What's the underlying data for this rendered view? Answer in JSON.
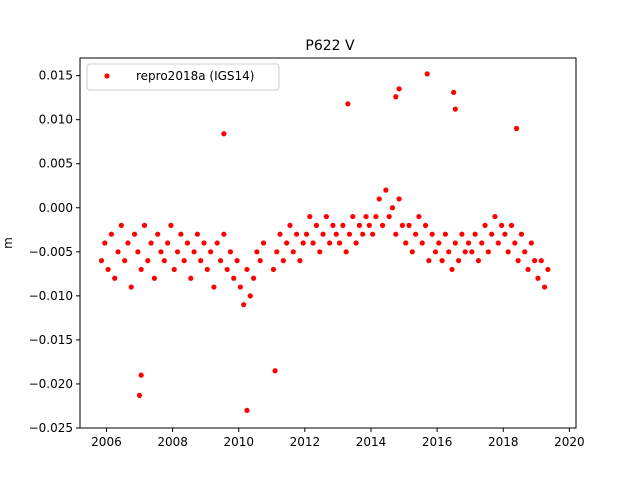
{
  "chart_data": {
    "type": "scatter",
    "title": "P622 V",
    "xlabel": "",
    "ylabel": "m",
    "xlim": [
      2005.2,
      2020.2
    ],
    "ylim": [
      -0.025,
      0.017
    ],
    "xticks": [
      2006,
      2008,
      2010,
      2012,
      2014,
      2016,
      2018,
      2020
    ],
    "xtick_labels": [
      "2006",
      "2008",
      "2010",
      "2012",
      "2014",
      "2016",
      "2018",
      "2020"
    ],
    "yticks": [
      -0.025,
      -0.02,
      -0.015,
      -0.01,
      -0.005,
      0.0,
      0.005,
      0.01,
      0.015
    ],
    "ytick_labels": [
      "−0.025",
      "−0.020",
      "−0.015",
      "−0.010",
      "−0.005",
      "0.000",
      "0.005",
      "0.010",
      "0.015"
    ],
    "grid": false,
    "legend_position": "top-left",
    "series": [
      {
        "name": "repro2018a (IGS14)",
        "color": "#ff0000",
        "marker": "circle",
        "x": [
          2005.85,
          2005.95,
          2006.05,
          2006.15,
          2006.25,
          2006.35,
          2006.45,
          2006.55,
          2006.65,
          2006.75,
          2006.85,
          2006.95,
          2007.05,
          2007.15,
          2007.25,
          2007.35,
          2007.45,
          2007.55,
          2007.65,
          2007.75,
          2007.85,
          2007.95,
          2008.05,
          2008.15,
          2008.25,
          2008.35,
          2008.45,
          2008.55,
          2008.65,
          2008.75,
          2008.85,
          2008.95,
          2009.05,
          2009.15,
          2009.25,
          2009.35,
          2009.45,
          2009.55,
          2009.65,
          2009.75,
          2009.85,
          2009.95,
          2010.05,
          2010.15,
          2010.25,
          2010.35,
          2010.45,
          2010.55,
          2010.65,
          2010.75,
          2011.05,
          2011.15,
          2011.25,
          2011.35,
          2011.45,
          2011.55,
          2011.65,
          2011.75,
          2011.85,
          2011.95,
          2012.05,
          2012.15,
          2012.25,
          2012.35,
          2012.45,
          2012.55,
          2012.65,
          2012.75,
          2012.85,
          2012.95,
          2013.05,
          2013.15,
          2013.25,
          2013.35,
          2013.45,
          2013.55,
          2013.65,
          2013.75,
          2013.85,
          2013.95,
          2014.05,
          2014.15,
          2014.25,
          2014.35,
          2014.45,
          2014.55,
          2014.65,
          2014.75,
          2014.85,
          2014.95,
          2015.05,
          2015.15,
          2015.25,
          2015.35,
          2015.45,
          2015.55,
          2015.65,
          2015.75,
          2015.85,
          2015.95,
          2016.05,
          2016.15,
          2016.25,
          2016.35,
          2016.45,
          2016.55,
          2016.65,
          2016.75,
          2016.85,
          2016.95,
          2017.05,
          2017.15,
          2017.25,
          2017.35,
          2017.45,
          2017.55,
          2017.65,
          2017.75,
          2017.85,
          2017.95,
          2018.05,
          2018.15,
          2018.25,
          2018.35,
          2018.45,
          2018.55,
          2018.65,
          2018.75,
          2018.85,
          2018.95,
          2019.05,
          2019.15,
          2019.25,
          2019.35,
          2007.0,
          2009.55,
          2010.25,
          2013.3,
          2014.75,
          2014.85,
          2015.7,
          2016.5,
          2016.55,
          2011.1,
          2007.05,
          2018.4
        ],
        "y": [
          -0.006,
          -0.004,
          -0.007,
          -0.003,
          -0.008,
          -0.005,
          -0.002,
          -0.006,
          -0.004,
          -0.009,
          -0.003,
          -0.005,
          -0.007,
          -0.002,
          -0.006,
          -0.004,
          -0.008,
          -0.003,
          -0.005,
          -0.006,
          -0.004,
          -0.002,
          -0.007,
          -0.005,
          -0.003,
          -0.006,
          -0.004,
          -0.008,
          -0.005,
          -0.003,
          -0.006,
          -0.004,
          -0.007,
          -0.005,
          -0.009,
          -0.004,
          -0.006,
          -0.003,
          -0.007,
          -0.005,
          -0.008,
          -0.006,
          -0.009,
          -0.011,
          -0.007,
          -0.01,
          -0.008,
          -0.005,
          -0.006,
          -0.004,
          -0.007,
          -0.005,
          -0.003,
          -0.006,
          -0.004,
          -0.002,
          -0.005,
          -0.003,
          -0.006,
          -0.004,
          -0.003,
          -0.001,
          -0.004,
          -0.002,
          -0.005,
          -0.003,
          -0.001,
          -0.004,
          -0.002,
          -0.003,
          -0.004,
          -0.002,
          -0.005,
          -0.003,
          -0.001,
          -0.004,
          -0.002,
          -0.003,
          -0.001,
          -0.002,
          -0.003,
          -0.001,
          0.001,
          -0.002,
          0.002,
          -0.001,
          0.0,
          -0.003,
          0.001,
          -0.002,
          -0.004,
          -0.002,
          -0.005,
          -0.003,
          -0.001,
          -0.004,
          -0.002,
          -0.006,
          -0.003,
          -0.005,
          -0.004,
          -0.006,
          -0.003,
          -0.005,
          -0.007,
          -0.004,
          -0.006,
          -0.003,
          -0.005,
          -0.004,
          -0.005,
          -0.003,
          -0.006,
          -0.004,
          -0.002,
          -0.005,
          -0.003,
          -0.001,
          -0.004,
          -0.002,
          -0.003,
          -0.005,
          -0.002,
          -0.004,
          -0.006,
          -0.003,
          -0.005,
          -0.007,
          -0.004,
          -0.006,
          -0.008,
          -0.006,
          -0.009,
          -0.007,
          -0.0213,
          0.0084,
          -0.023,
          0.0118,
          0.0126,
          0.0135,
          0.0152,
          0.0131,
          0.0112,
          -0.0185,
          -0.019,
          0.009
        ]
      }
    ]
  }
}
